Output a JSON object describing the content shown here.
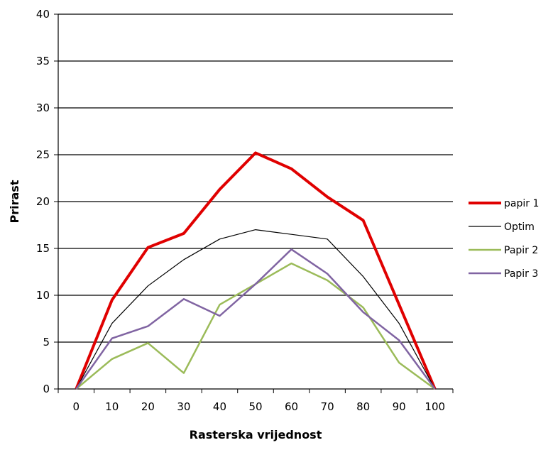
{
  "chart_data": {
    "type": "line",
    "title": "",
    "xlabel": "Rasterska vrijednost",
    "ylabel": "Prirast",
    "x": [
      0,
      10,
      20,
      30,
      40,
      50,
      60,
      70,
      80,
      90,
      100
    ],
    "ylim": [
      0,
      40
    ],
    "yticks": [
      0,
      5,
      10,
      15,
      20,
      25,
      30,
      35,
      40
    ],
    "grid": "horizontal",
    "legend_position": "right",
    "series": [
      {
        "name": "papir 1",
        "color": "#e00000",
        "values": [
          0,
          9.5,
          15.1,
          16.6,
          21.3,
          25.2,
          23.5,
          20.5,
          18.0,
          9.0,
          0
        ]
      },
      {
        "name": "Optim",
        "color": "#000000",
        "values": [
          0,
          7.0,
          11.0,
          13.8,
          16.0,
          17.0,
          16.5,
          16.0,
          12.0,
          7.0,
          0
        ]
      },
      {
        "name": "Papir 2",
        "color": "#9bbb59",
        "values": [
          0,
          3.2,
          4.9,
          1.7,
          9.0,
          11.2,
          13.4,
          11.6,
          8.7,
          2.8,
          0
        ]
      },
      {
        "name": "Papir 3",
        "color": "#8064a2",
        "values": [
          0,
          5.4,
          6.7,
          9.6,
          7.8,
          11.2,
          14.9,
          12.3,
          8.2,
          5.2,
          0
        ]
      }
    ]
  }
}
